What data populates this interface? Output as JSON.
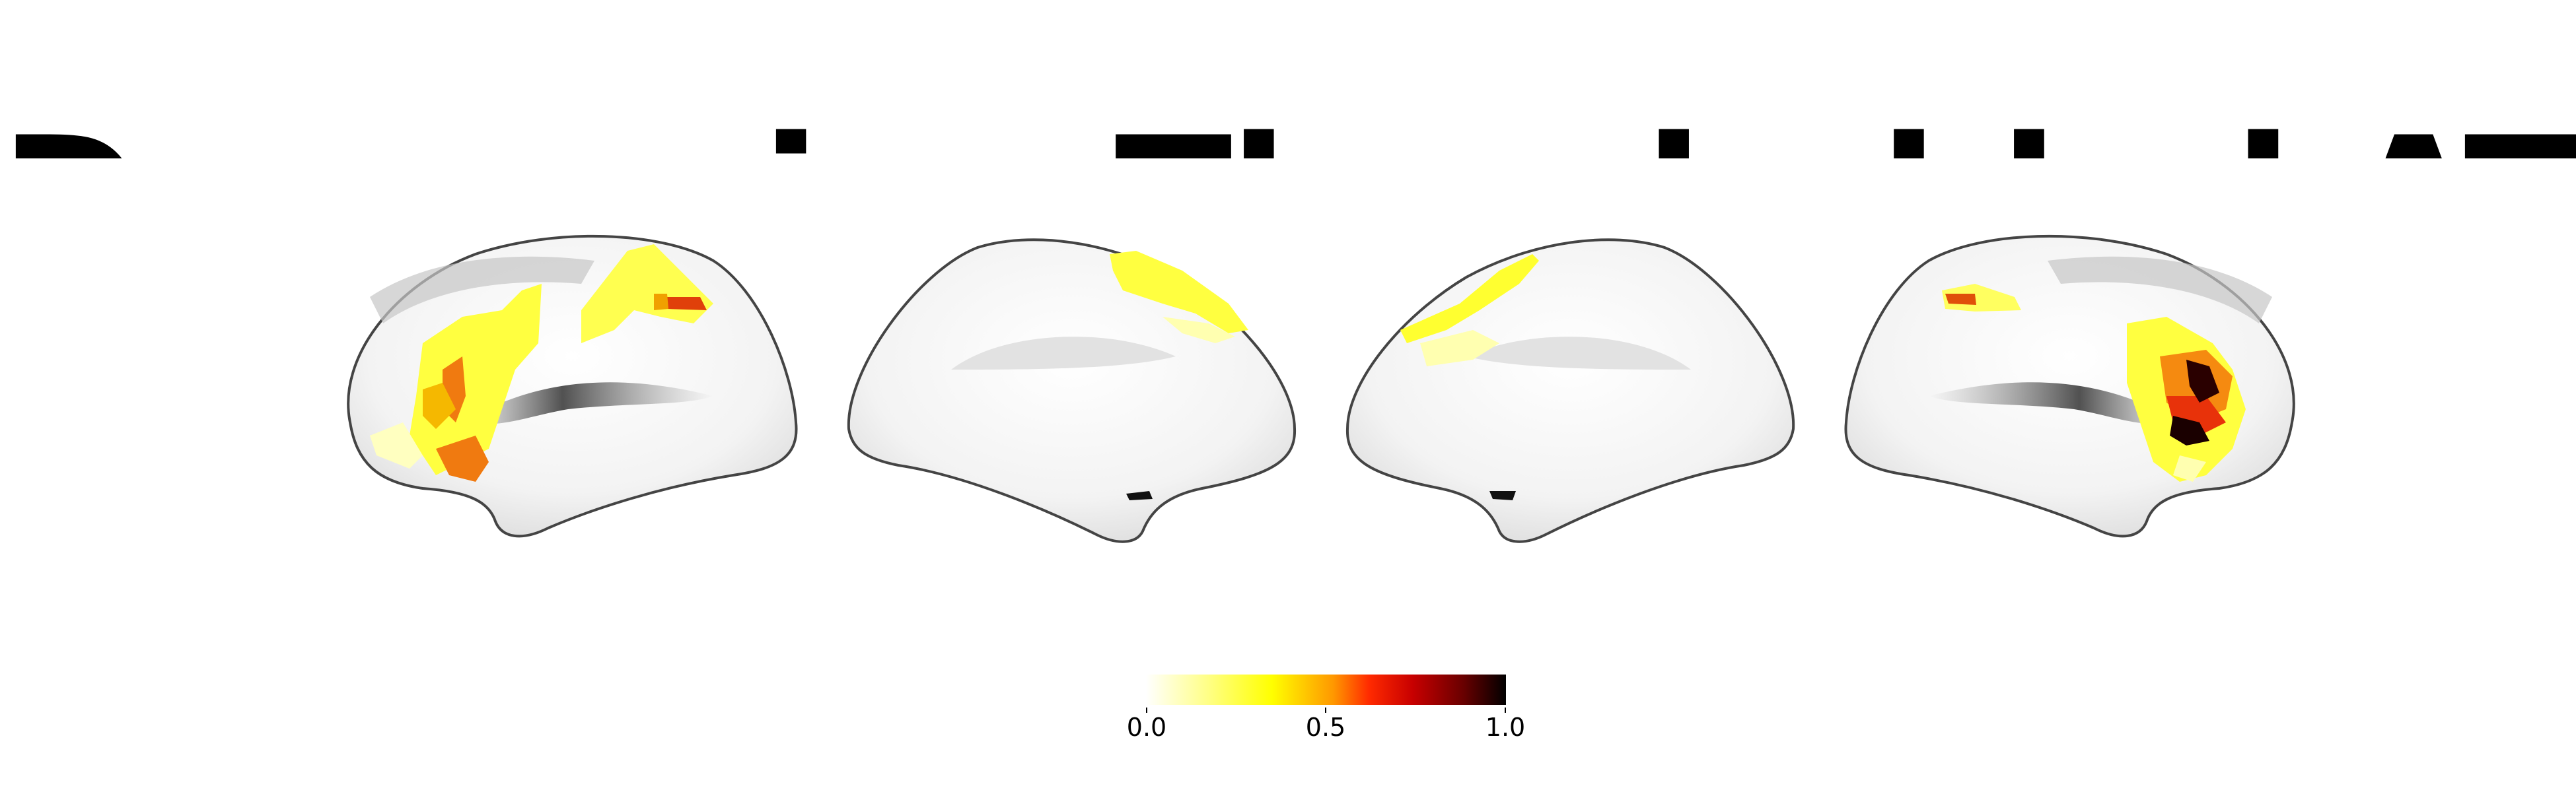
{
  "figure": {
    "title": "Decreasing Thresholded ATL"
  },
  "colorbar": {
    "colormap": "hot_r",
    "ticks": [
      "0.0",
      "0.5",
      "1.0"
    ],
    "range": [
      0.0,
      1.0
    ]
  },
  "views": [
    {
      "name": "left-lateral"
    },
    {
      "name": "left-medial"
    },
    {
      "name": "right-medial"
    },
    {
      "name": "right-lateral"
    }
  ],
  "colors": {
    "background": "#ffffff",
    "cortex_light": "#f2f2f2",
    "cortex_dark": "#9a9a9a"
  }
}
